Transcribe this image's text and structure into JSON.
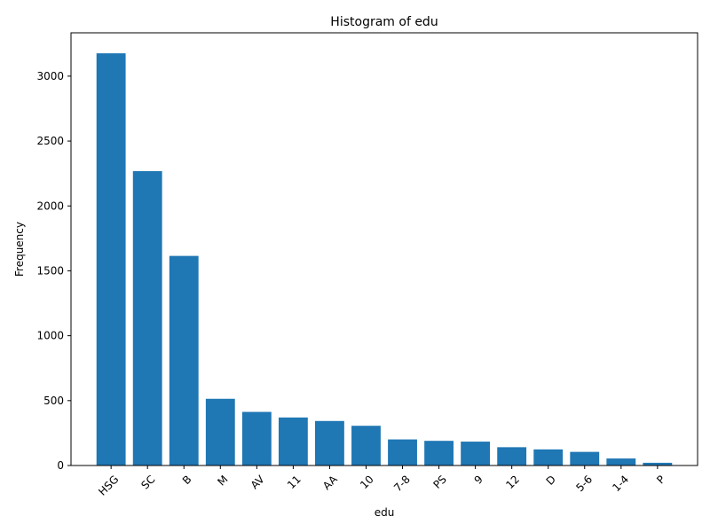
{
  "chart_data": {
    "type": "bar",
    "title": "Histogram of edu",
    "xlabel": "edu",
    "ylabel": "Frequency",
    "categories": [
      "HSG",
      "SC",
      "B",
      "M",
      "AV",
      "11",
      "AA",
      "10",
      "7-8",
      "PS",
      "9",
      "12",
      "D",
      "5-6",
      "1-4",
      "P"
    ],
    "values": [
      3176,
      2268,
      1615,
      514,
      413,
      370,
      343,
      306,
      201,
      190,
      184,
      141,
      124,
      105,
      54,
      21
    ],
    "ylim": [
      0,
      3334
    ],
    "yticks": [
      0,
      500,
      1000,
      1500,
      2000,
      2500,
      3000
    ],
    "grid": false,
    "bar_color": "#1f77b4"
  }
}
